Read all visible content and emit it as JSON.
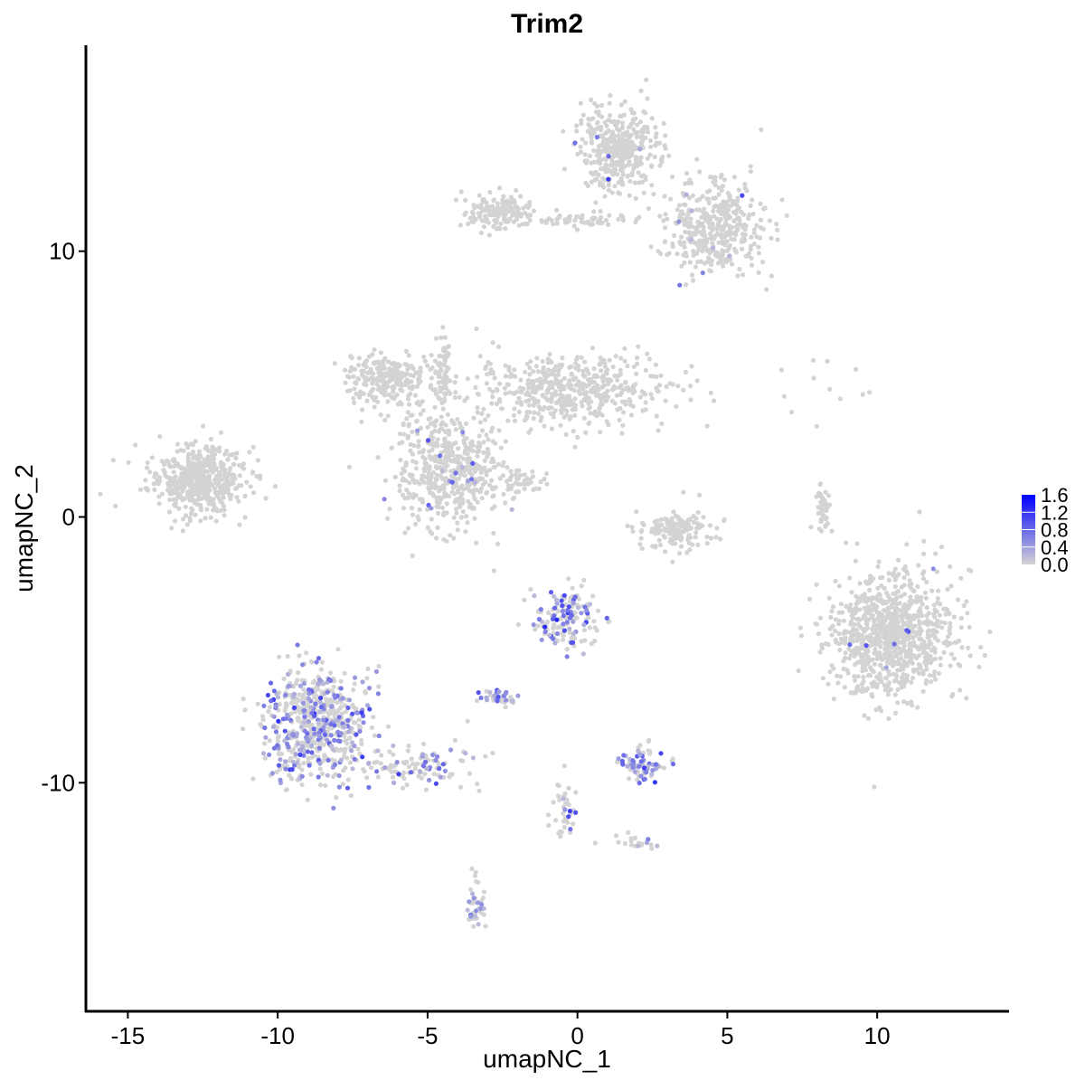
{
  "chart_data": {
    "type": "scatter",
    "title": "Trim2",
    "xlabel": "umapNC_1",
    "ylabel": "umapNC_2",
    "xlim": [
      -16.4,
      14.4
    ],
    "ylim": [
      -18.6,
      17.75
    ],
    "x_ticks": [
      -15,
      -10,
      -5,
      0,
      5,
      10
    ],
    "y_ticks": [
      -10,
      0,
      10
    ],
    "x_tick_labels": [
      "-15",
      "-10",
      "-5",
      "0",
      "5",
      "10"
    ],
    "y_tick_labels": [
      "-10",
      "0",
      "10"
    ],
    "grid": false,
    "color_scale": {
      "low": "#d3d3d3",
      "high": "#0000ff",
      "range": [
        0,
        1.6
      ],
      "ticks": [
        "1.6",
        "1.2",
        "0.8",
        "0.4",
        "0.0"
      ],
      "legend_placement": "right"
    },
    "point_groups": [
      {
        "center": [
          -12.7,
          1.4
        ],
        "spread": [
          1.0,
          0.8
        ],
        "n": 500,
        "expressing_fraction": 0.0,
        "mean_expression": 0
      },
      {
        "center": [
          -6.3,
          5.2
        ],
        "spread": [
          1.0,
          0.6
        ],
        "n": 250,
        "expressing_fraction": 0.0,
        "mean_expression": 0
      },
      {
        "center": [
          -4.3,
          1.7
        ],
        "spread": [
          1.1,
          1.4
        ],
        "n": 500,
        "expressing_fraction": 0.02,
        "mean_expression": 0.6
      },
      {
        "center": [
          -0.2,
          4.8
        ],
        "spread": [
          2.0,
          0.8
        ],
        "n": 500,
        "expressing_fraction": 0.0,
        "mean_expression": 0
      },
      {
        "center": [
          -4.5,
          5.5
        ],
        "spread": [
          0.15,
          1.0
        ],
        "n": 60,
        "expressing_fraction": 0.0,
        "mean_expression": 0
      },
      {
        "center": [
          -1.8,
          1.3
        ],
        "spread": [
          0.5,
          0.3
        ],
        "n": 40,
        "expressing_fraction": 0.0,
        "mean_expression": 0
      },
      {
        "center": [
          1.4,
          13.8
        ],
        "spread": [
          0.8,
          1.0
        ],
        "n": 400,
        "expressing_fraction": 0.01,
        "mean_expression": 0.7
      },
      {
        "center": [
          4.6,
          10.8
        ],
        "spread": [
          1.0,
          1.1
        ],
        "n": 400,
        "expressing_fraction": 0.02,
        "mean_expression": 0.7
      },
      {
        "center": [
          -2.7,
          11.5
        ],
        "spread": [
          0.7,
          0.4
        ],
        "n": 150,
        "expressing_fraction": 0.01,
        "mean_expression": 0.7
      },
      {
        "center": [
          0.0,
          11.2
        ],
        "spread": [
          1.0,
          0.2
        ],
        "n": 60,
        "expressing_fraction": 0.0,
        "mean_expression": 0
      },
      {
        "center": [
          10.5,
          -4.4
        ],
        "spread": [
          1.3,
          1.5
        ],
        "n": 900,
        "expressing_fraction": 0.01,
        "mean_expression": 0.6
      },
      {
        "center": [
          3.3,
          -0.5
        ],
        "spread": [
          0.8,
          0.5
        ],
        "n": 150,
        "expressing_fraction": 0.01,
        "mean_expression": 0.8
      },
      {
        "center": [
          8.2,
          0.3
        ],
        "spread": [
          0.15,
          0.5
        ],
        "n": 40,
        "expressing_fraction": 0.0,
        "mean_expression": 0
      },
      {
        "center": [
          -8.7,
          -7.8
        ],
        "spread": [
          1.1,
          1.3
        ],
        "n": 600,
        "expressing_fraction": 0.35,
        "mean_expression": 0.55
      },
      {
        "center": [
          -5.5,
          -9.4
        ],
        "spread": [
          1.2,
          0.5
        ],
        "n": 120,
        "expressing_fraction": 0.2,
        "mean_expression": 0.5
      },
      {
        "center": [
          -0.4,
          -3.8
        ],
        "spread": [
          0.7,
          0.8
        ],
        "n": 150,
        "expressing_fraction": 0.4,
        "mean_expression": 0.6
      },
      {
        "center": [
          2.2,
          -9.3
        ],
        "spread": [
          0.5,
          0.4
        ],
        "n": 80,
        "expressing_fraction": 0.5,
        "mean_expression": 0.55
      },
      {
        "center": [
          -2.6,
          -6.8
        ],
        "spread": [
          0.4,
          0.2
        ],
        "n": 40,
        "expressing_fraction": 0.4,
        "mean_expression": 0.5
      },
      {
        "center": [
          -0.5,
          -11.0
        ],
        "spread": [
          0.3,
          0.7
        ],
        "n": 40,
        "expressing_fraction": 0.1,
        "mean_expression": 0.5
      },
      {
        "center": [
          -3.4,
          -14.5
        ],
        "spread": [
          0.2,
          0.7
        ],
        "n": 40,
        "expressing_fraction": 0.3,
        "mean_expression": 0.5
      },
      {
        "center": [
          2.0,
          -12.3
        ],
        "spread": [
          0.6,
          0.2
        ],
        "n": 20,
        "expressing_fraction": 0.3,
        "mean_expression": 0.5
      },
      {
        "center": [
          8.0,
          5.0
        ],
        "spread": [
          1.2,
          1.2
        ],
        "n": 12,
        "expressing_fraction": 0.0,
        "mean_expression": 0
      }
    ]
  }
}
